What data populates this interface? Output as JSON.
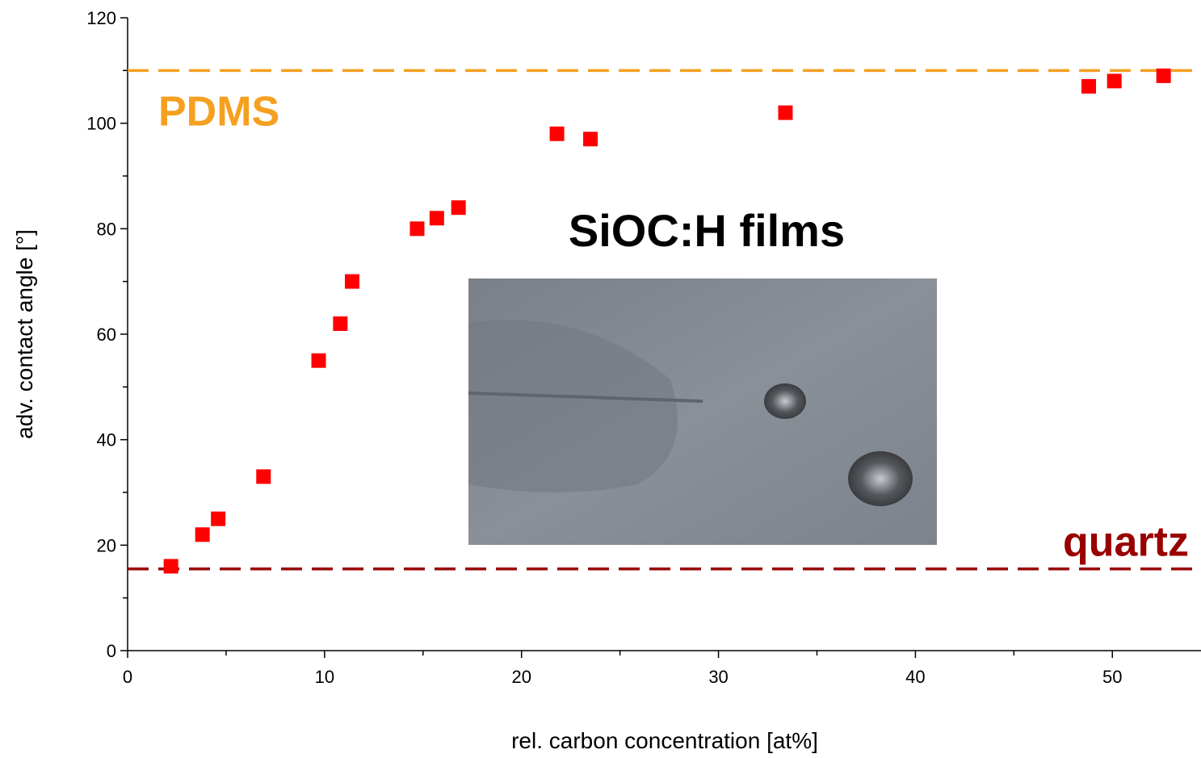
{
  "chart_data": {
    "type": "scatter",
    "xlabel": "rel. carbon concentration [at%]",
    "ylabel": "adv. contact angle [°]",
    "annotation": "SiOC:H films",
    "series": [
      {
        "color": "#ff0000",
        "x": [
          2.2,
          3.8,
          4.6,
          6.9,
          9.7,
          10.8,
          11.4,
          14.7,
          15.7,
          16.8,
          21.8,
          23.5,
          33.4,
          48.8,
          50.1,
          52.6
        ],
        "values": [
          16,
          22,
          25,
          33,
          55,
          62,
          70,
          80,
          82,
          84,
          98,
          97,
          102,
          107,
          108,
          109
        ]
      }
    ],
    "reference_lines": [
      {
        "label": "PDMS",
        "value": 110,
        "color": "#f5a020"
      },
      {
        "label": "quartz",
        "value": 15.5,
        "color": "#990000"
      }
    ],
    "xlim": [
      0,
      54.5
    ],
    "ylim": [
      0,
      120
    ],
    "xticks": [
      0,
      10,
      20,
      30,
      40,
      50
    ],
    "xminorticks": [
      5,
      15,
      25,
      35,
      45
    ],
    "yticks": [
      0,
      20,
      40,
      60,
      80,
      100,
      120
    ],
    "yminorticks": [
      10,
      30,
      50,
      70,
      90,
      110
    ]
  }
}
